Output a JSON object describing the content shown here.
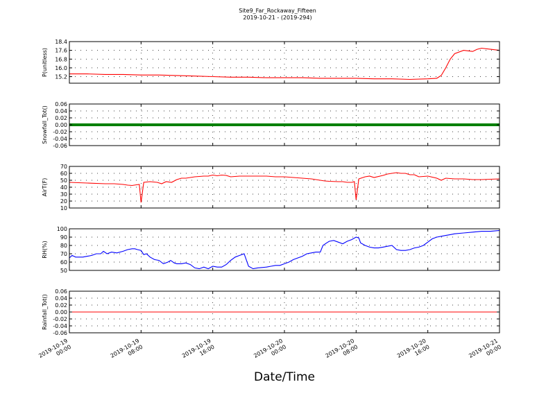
{
  "figure": {
    "title": "Site9_Far_Rockaway_Fifteen",
    "subtitle": "2019-10-21 - (2019-294)",
    "xlabel": "Date/Time"
  },
  "chart_data": [
    {
      "type": "line",
      "ylabel": "P(unitless)",
      "ylim": [
        14.6,
        18.4
      ],
      "yticks": [
        "15.2",
        "16.0",
        "16.8",
        "17.6",
        "18.4"
      ],
      "yticks_values": [
        15.2,
        16.0,
        16.8,
        17.6,
        18.4
      ],
      "xlim": [
        0,
        48
      ],
      "xticks": [
        [
          "2019-10-19",
          "00:00"
        ],
        [
          "2019-10-19",
          "08:00"
        ],
        [
          "2019-10-19",
          "16:00"
        ],
        [
          "2019-10-20",
          "00:00"
        ],
        [
          "2019-10-20",
          "08:00"
        ],
        [
          "2019-10-20",
          "16:00"
        ],
        [
          "2019-10-21",
          "00:00"
        ]
      ],
      "grid": true,
      "series": [
        {
          "color": "#ff0000",
          "points": [
            [
              0,
              15.45
            ],
            [
              2,
              15.45
            ],
            [
              4,
              15.4
            ],
            [
              6,
              15.4
            ],
            [
              8,
              15.35
            ],
            [
              10,
              15.35
            ],
            [
              12,
              15.3
            ],
            [
              14,
              15.25
            ],
            [
              16,
              15.2
            ],
            [
              18,
              15.15
            ],
            [
              20,
              15.15
            ],
            [
              22,
              15.1
            ],
            [
              24,
              15.1
            ],
            [
              26,
              15.1
            ],
            [
              28,
              15.05
            ],
            [
              30,
              15.05
            ],
            [
              32,
              15.05
            ],
            [
              34,
              15.0
            ],
            [
              36,
              15.0
            ],
            [
              38,
              14.95
            ],
            [
              40,
              15.0
            ],
            [
              41,
              15.05
            ],
            [
              41.5,
              15.3
            ],
            [
              42,
              16.0
            ],
            [
              42.5,
              16.8
            ],
            [
              43,
              17.3
            ],
            [
              44,
              17.6
            ],
            [
              45,
              17.5
            ],
            [
              45.5,
              17.7
            ],
            [
              46,
              17.8
            ],
            [
              47,
              17.7
            ],
            [
              48,
              17.6
            ]
          ]
        }
      ]
    },
    {
      "type": "line",
      "ylabel": "Snowfall_Tot()",
      "ylim": [
        -0.06,
        0.06
      ],
      "yticks": [
        "-0.06",
        "-0.04",
        "-0.02",
        "0.00",
        "0.02",
        "0.04",
        "0.06"
      ],
      "yticks_values": [
        -0.06,
        -0.04,
        -0.02,
        0.0,
        0.02,
        0.04,
        0.06
      ],
      "xlim": [
        0,
        48
      ],
      "grid": true,
      "series": [
        {
          "color": "#008000",
          "marker": "dot",
          "points": [
            [
              0,
              0
            ],
            [
              48,
              0
            ]
          ]
        }
      ]
    },
    {
      "type": "line",
      "ylabel": "AirT(F)",
      "ylim": [
        10,
        70
      ],
      "yticks": [
        "10",
        "20",
        "30",
        "40",
        "50",
        "60",
        "70"
      ],
      "yticks_values": [
        10,
        20,
        30,
        40,
        50,
        60,
        70
      ],
      "xlim": [
        0,
        48
      ],
      "grid": true,
      "series": [
        {
          "color": "#ff0000",
          "points": [
            [
              0,
              47
            ],
            [
              2,
              46
            ],
            [
              4,
              45
            ],
            [
              5,
              45
            ],
            [
              6,
              44
            ],
            [
              6.5,
              43
            ],
            [
              7,
              42.5
            ],
            [
              7.5,
              43.5
            ],
            [
              7.8,
              44
            ],
            [
              8,
              18
            ],
            [
              8.3,
              47
            ],
            [
              9,
              48
            ],
            [
              9.8,
              47
            ],
            [
              10.3,
              45
            ],
            [
              10.8,
              48
            ],
            [
              11.4,
              47
            ],
            [
              12,
              51
            ],
            [
              12.5,
              53
            ],
            [
              13,
              53
            ],
            [
              14,
              55
            ],
            [
              15,
              56
            ],
            [
              15.5,
              56
            ],
            [
              16,
              57.5
            ],
            [
              16.5,
              56.5
            ],
            [
              17,
              57.5
            ],
            [
              17.5,
              57
            ],
            [
              18,
              55
            ],
            [
              19,
              56
            ],
            [
              20,
              56
            ],
            [
              21,
              56
            ],
            [
              22,
              56
            ],
            [
              23,
              55
            ],
            [
              24,
              55
            ],
            [
              25,
              54
            ],
            [
              26,
              53
            ],
            [
              27,
              52
            ],
            [
              27.5,
              51
            ],
            [
              28,
              50
            ],
            [
              28.5,
              49
            ],
            [
              29,
              48.5
            ],
            [
              30,
              48
            ],
            [
              30.5,
              48
            ],
            [
              31,
              47
            ],
            [
              31.5,
              47
            ],
            [
              31.8,
              48
            ],
            [
              32,
              22
            ],
            [
              32.3,
              52
            ],
            [
              33,
              55
            ],
            [
              33.5,
              56
            ],
            [
              34,
              54
            ],
            [
              35,
              57
            ],
            [
              35.5,
              59
            ],
            [
              36,
              60
            ],
            [
              36.5,
              61
            ],
            [
              37,
              60
            ],
            [
              37.5,
              60
            ],
            [
              38,
              58
            ],
            [
              38.5,
              58
            ],
            [
              39,
              55
            ],
            [
              40,
              56
            ],
            [
              41,
              53
            ],
            [
              41.5,
              50
            ],
            [
              42,
              53
            ],
            [
              43,
              52
            ],
            [
              44,
              52
            ],
            [
              45,
              51
            ],
            [
              46,
              51
            ],
            [
              47,
              51.5
            ],
            [
              48,
              52
            ]
          ]
        }
      ]
    },
    {
      "type": "line",
      "ylabel": "RH(%)",
      "ylim": [
        50,
        100
      ],
      "yticks": [
        "50",
        "60",
        "70",
        "80",
        "90",
        "100"
      ],
      "yticks_values": [
        50,
        60,
        70,
        80,
        90,
        100
      ],
      "xlim": [
        0,
        48
      ],
      "grid": true,
      "series": [
        {
          "color": "#0000ff",
          "points": [
            [
              0,
              65
            ],
            [
              0.3,
              68
            ],
            [
              0.7,
              66
            ],
            [
              1.5,
              66
            ],
            [
              2,
              67
            ],
            [
              2.5,
              68
            ],
            [
              3,
              70
            ],
            [
              3.5,
              70
            ],
            [
              3.8,
              73
            ],
            [
              4.2,
              70
            ],
            [
              4.7,
              72
            ],
            [
              5.3,
              71
            ],
            [
              6,
              73
            ],
            [
              6.5,
              75
            ],
            [
              7,
              76
            ],
            [
              7.3,
              76
            ],
            [
              7.6,
              75
            ],
            [
              8,
              74
            ],
            [
              8.3,
              69
            ],
            [
              8.6,
              70
            ],
            [
              9,
              66
            ],
            [
              9.5,
              63
            ],
            [
              10,
              62
            ],
            [
              10.5,
              58
            ],
            [
              11,
              60
            ],
            [
              11.3,
              62
            ],
            [
              11.7,
              59
            ],
            [
              12,
              58
            ],
            [
              12.5,
              58
            ],
            [
              13,
              59
            ],
            [
              13.5,
              57
            ],
            [
              14,
              53
            ],
            [
              14.5,
              52
            ],
            [
              15,
              54
            ],
            [
              15.5,
              52
            ],
            [
              16,
              55
            ],
            [
              16.5,
              54
            ],
            [
              17,
              54
            ],
            [
              17.5,
              57
            ],
            [
              18,
              62
            ],
            [
              18.5,
              66
            ],
            [
              19,
              68
            ],
            [
              19.5,
              70
            ],
            [
              20,
              55
            ],
            [
              20.5,
              52
            ],
            [
              21,
              53
            ],
            [
              22,
              54
            ],
            [
              22.5,
              55
            ],
            [
              23,
              56
            ],
            [
              23.5,
              56
            ],
            [
              24,
              58
            ],
            [
              24.5,
              60
            ],
            [
              25,
              63
            ],
            [
              26,
              67
            ],
            [
              26.5,
              70
            ],
            [
              27,
              71
            ],
            [
              27.5,
              72
            ],
            [
              28,
              72
            ],
            [
              28.3,
              80
            ],
            [
              28.7,
              83
            ],
            [
              29,
              85
            ],
            [
              29.5,
              86
            ],
            [
              30,
              84
            ],
            [
              30.5,
              82
            ],
            [
              31,
              85
            ],
            [
              31.5,
              87
            ],
            [
              32,
              90
            ],
            [
              32.3,
              89
            ],
            [
              32.5,
              83
            ],
            [
              33,
              80
            ],
            [
              33.5,
              78
            ],
            [
              34,
              77
            ],
            [
              34.5,
              77
            ],
            [
              35,
              78
            ],
            [
              35.5,
              79
            ],
            [
              36,
              80
            ],
            [
              36.5,
              75
            ],
            [
              37,
              74
            ],
            [
              37.5,
              74
            ],
            [
              38,
              75
            ],
            [
              38.5,
              77
            ],
            [
              39,
              78
            ],
            [
              39.5,
              80
            ],
            [
              40,
              84
            ],
            [
              40.5,
              88
            ],
            [
              41,
              90
            ],
            [
              41.5,
              91
            ],
            [
              42,
              92
            ],
            [
              42.5,
              93
            ],
            [
              43,
              94
            ],
            [
              44,
              95
            ],
            [
              45,
              96
            ],
            [
              46,
              97
            ],
            [
              47,
              97
            ],
            [
              48,
              98
            ]
          ]
        }
      ]
    },
    {
      "type": "line",
      "ylabel": "Rainfall_Tot()",
      "ylim": [
        -0.06,
        0.06
      ],
      "yticks": [
        "-0.06",
        "-0.04",
        "-0.02",
        "0.00",
        "0.02",
        "0.04",
        "0.06"
      ],
      "yticks_values": [
        -0.06,
        -0.04,
        -0.02,
        0.0,
        0.02,
        0.04,
        0.06
      ],
      "xlim": [
        0,
        48
      ],
      "grid": true,
      "series": [
        {
          "color": "#ff0000",
          "points": [
            [
              0,
              0
            ],
            [
              48,
              0
            ]
          ]
        }
      ]
    }
  ]
}
